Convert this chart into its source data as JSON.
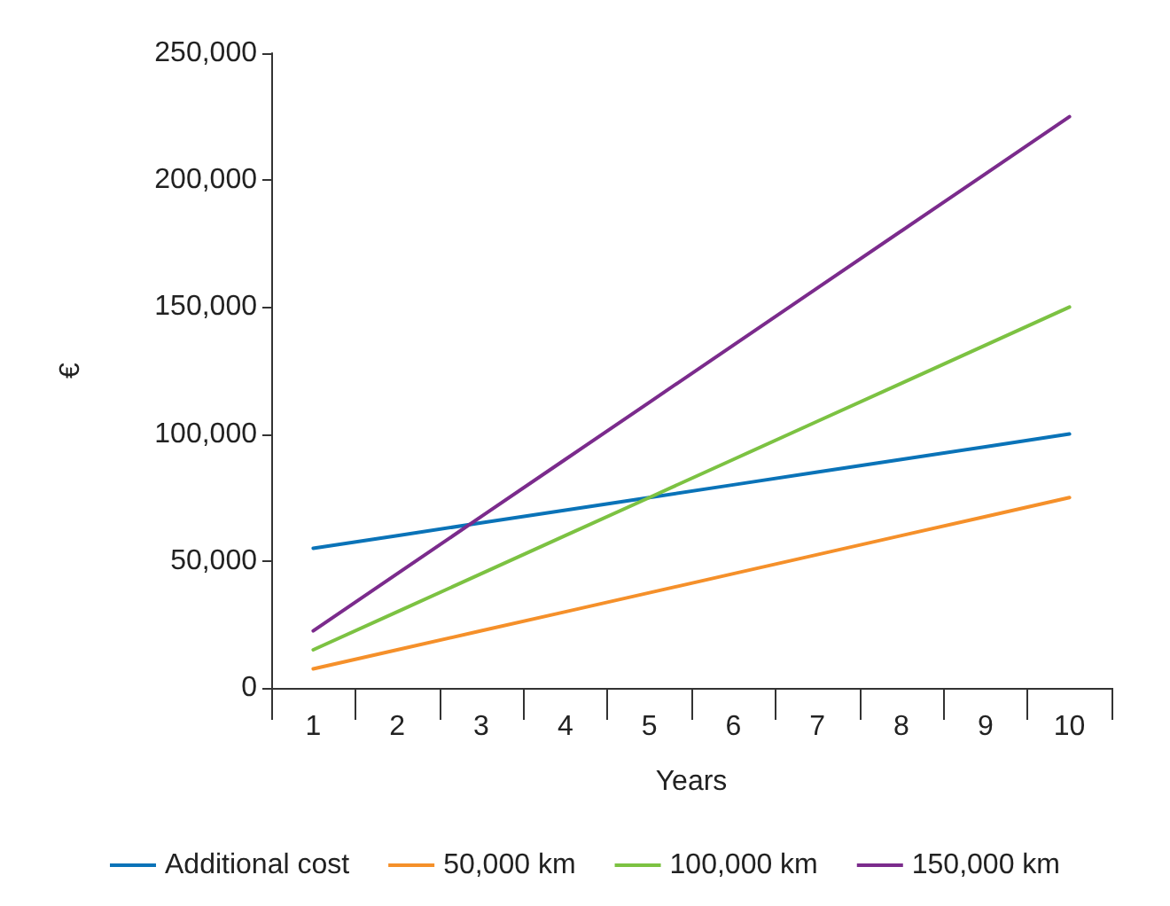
{
  "chart_data": {
    "type": "line",
    "xlabel": "Years",
    "ylabel": "€",
    "categories": [
      "1",
      "2",
      "3",
      "4",
      "5",
      "6",
      "7",
      "8",
      "9",
      "10"
    ],
    "series": [
      {
        "name": "Additional cost",
        "color": "#0a73b8",
        "values": [
          55000,
          60000,
          65000,
          70000,
          75000,
          80000,
          85000,
          90000,
          95000,
          100000
        ]
      },
      {
        "name": "50,000 km",
        "color": "#f5902a",
        "values": [
          7500,
          15000,
          22500,
          30000,
          37500,
          45000,
          52500,
          60000,
          67500,
          75000
        ]
      },
      {
        "name": "100,000 km",
        "color": "#7cc242",
        "values": [
          15000,
          30000,
          45000,
          60000,
          75000,
          90000,
          105000,
          120000,
          135000,
          150000
        ]
      },
      {
        "name": "150,000 km",
        "color": "#7b2b8c",
        "values": [
          22500,
          45000,
          67500,
          90000,
          112500,
          135000,
          157500,
          180000,
          202500,
          225000
        ]
      }
    ],
    "ylim": [
      0,
      250000
    ],
    "yticks": [
      0,
      {
        "value": 50000,
        "label": "50,000"
      },
      {
        "value": 100000,
        "label": "100,000"
      },
      {
        "value": 150000,
        "label": "150,000"
      },
      {
        "value": 200000,
        "label": "200,000"
      },
      {
        "value": 250000,
        "label": "250,000"
      }
    ],
    "grid": false,
    "legend": "bottom",
    "marker": "none",
    "line_style": "solid"
  }
}
